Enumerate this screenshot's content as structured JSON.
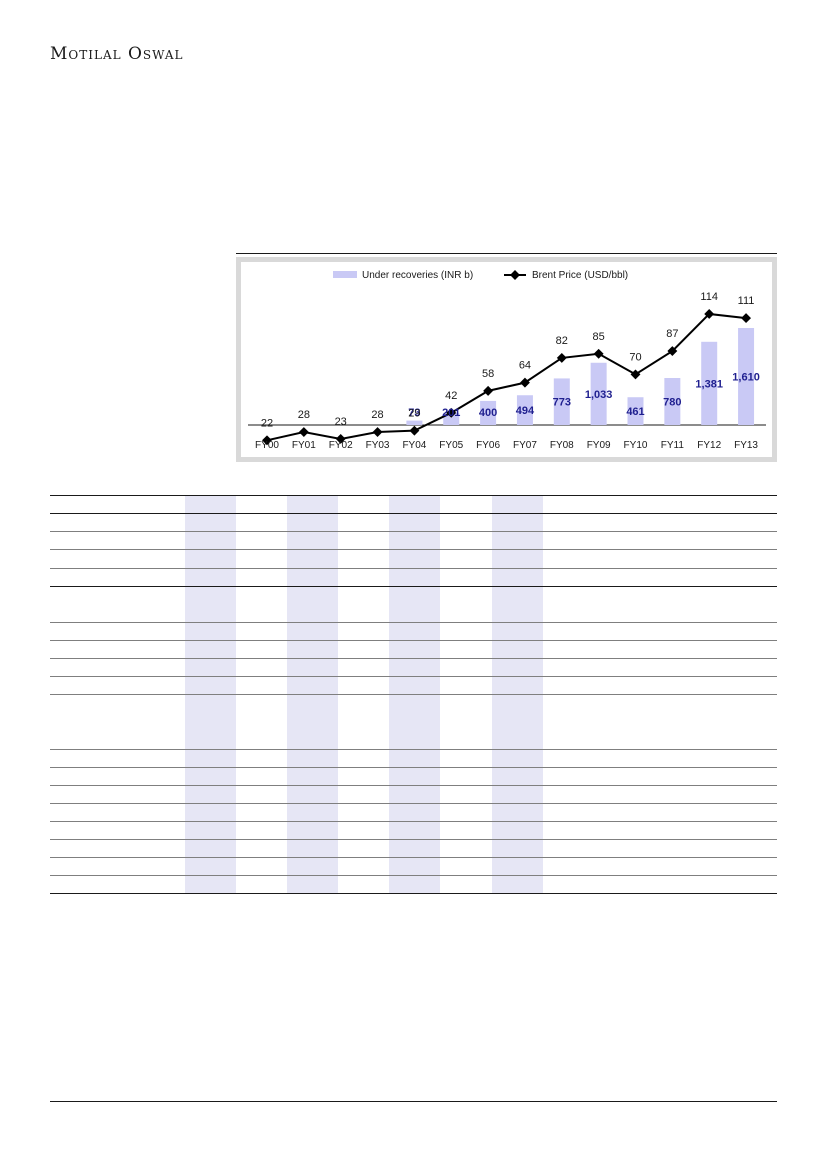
{
  "brand": {
    "name": "Motilal Oswal"
  },
  "colors": {
    "bar": "#c9c9f5",
    "bar_label": "#1f1f8f",
    "line": "#000000",
    "shade": "#e6e6f5"
  },
  "chart_data": {
    "type": "bar",
    "categories": [
      "FY00",
      "FY01",
      "FY02",
      "FY03",
      "FY04",
      "FY05",
      "FY06",
      "FY07",
      "FY08",
      "FY09",
      "FY10",
      "FY11",
      "FY12",
      "FY13"
    ],
    "series": [
      {
        "name": "Under recoveries  (INR b)",
        "type": "bar",
        "values": [
          null,
          null,
          null,
          null,
          73,
          201,
          400,
          494,
          773,
          1033,
          461,
          780,
          1381,
          1610
        ],
        "labels": [
          "",
          "",
          "",
          "",
          "73",
          "201",
          "400",
          "494",
          "773",
          "1,033",
          "461",
          "780",
          "1,381",
          "1,610"
        ]
      },
      {
        "name": "Brent Price (USD/bbl)",
        "type": "line",
        "values": [
          22,
          28,
          23,
          28,
          29,
          42,
          58,
          64,
          82,
          85,
          70,
          87,
          114,
          111
        ],
        "labels": [
          "22",
          "28",
          "23",
          "28",
          "29",
          "42",
          "58",
          "64",
          "82",
          "85",
          "70",
          "87",
          "114",
          "111"
        ]
      }
    ],
    "legend": "top",
    "grid": false
  }
}
